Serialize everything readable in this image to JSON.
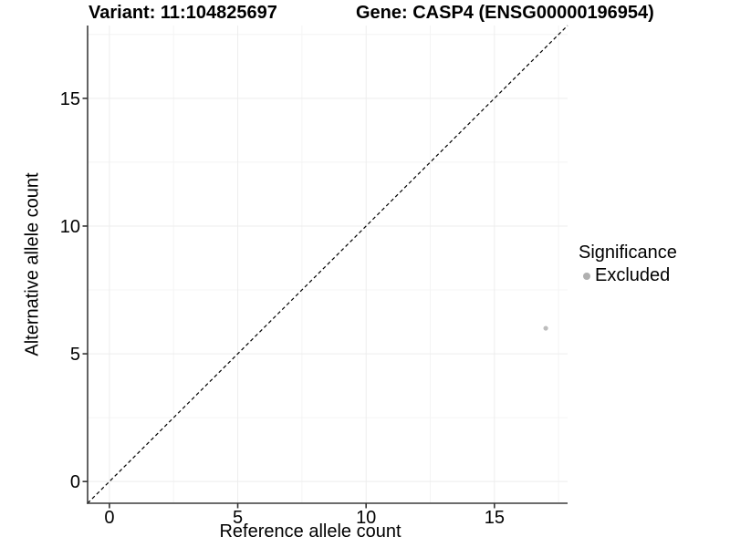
{
  "chart_data": {
    "type": "scatter",
    "title_left": "Variant: 11:104825697",
    "title_right": "Gene: CASP4 (ENSG00000196954)",
    "xlabel": "Reference allele count",
    "ylabel": "Alternative allele count",
    "xlim": [
      -0.85,
      17.85
    ],
    "ylim": [
      -0.85,
      17.85
    ],
    "xticks": [
      0,
      5,
      10,
      15
    ],
    "yticks": [
      0,
      5,
      10,
      15
    ],
    "xminor": [
      2.5,
      7.5,
      12.5,
      17.5
    ],
    "yminor": [
      2.5,
      7.5,
      12.5,
      17.5
    ],
    "grid": "major+minor",
    "reference_line": {
      "kind": "abline",
      "slope": 1,
      "intercept": 0,
      "style": "dashed",
      "color": "#000000"
    },
    "series": [
      {
        "name": "Excluded",
        "color": "#bdbdbd",
        "points": [
          {
            "x": 17,
            "y": 6
          }
        ]
      }
    ],
    "legend": {
      "title": "Significance",
      "position": "right",
      "entries": [
        {
          "label": "Excluded",
          "color": "#b0b0b0"
        }
      ]
    },
    "colors": {
      "axis_line": "#3c3c3c",
      "tick_mark": "#333333",
      "grid_major": "#ededed",
      "grid_minor": "#f4f4f4",
      "text": "#000000"
    }
  }
}
